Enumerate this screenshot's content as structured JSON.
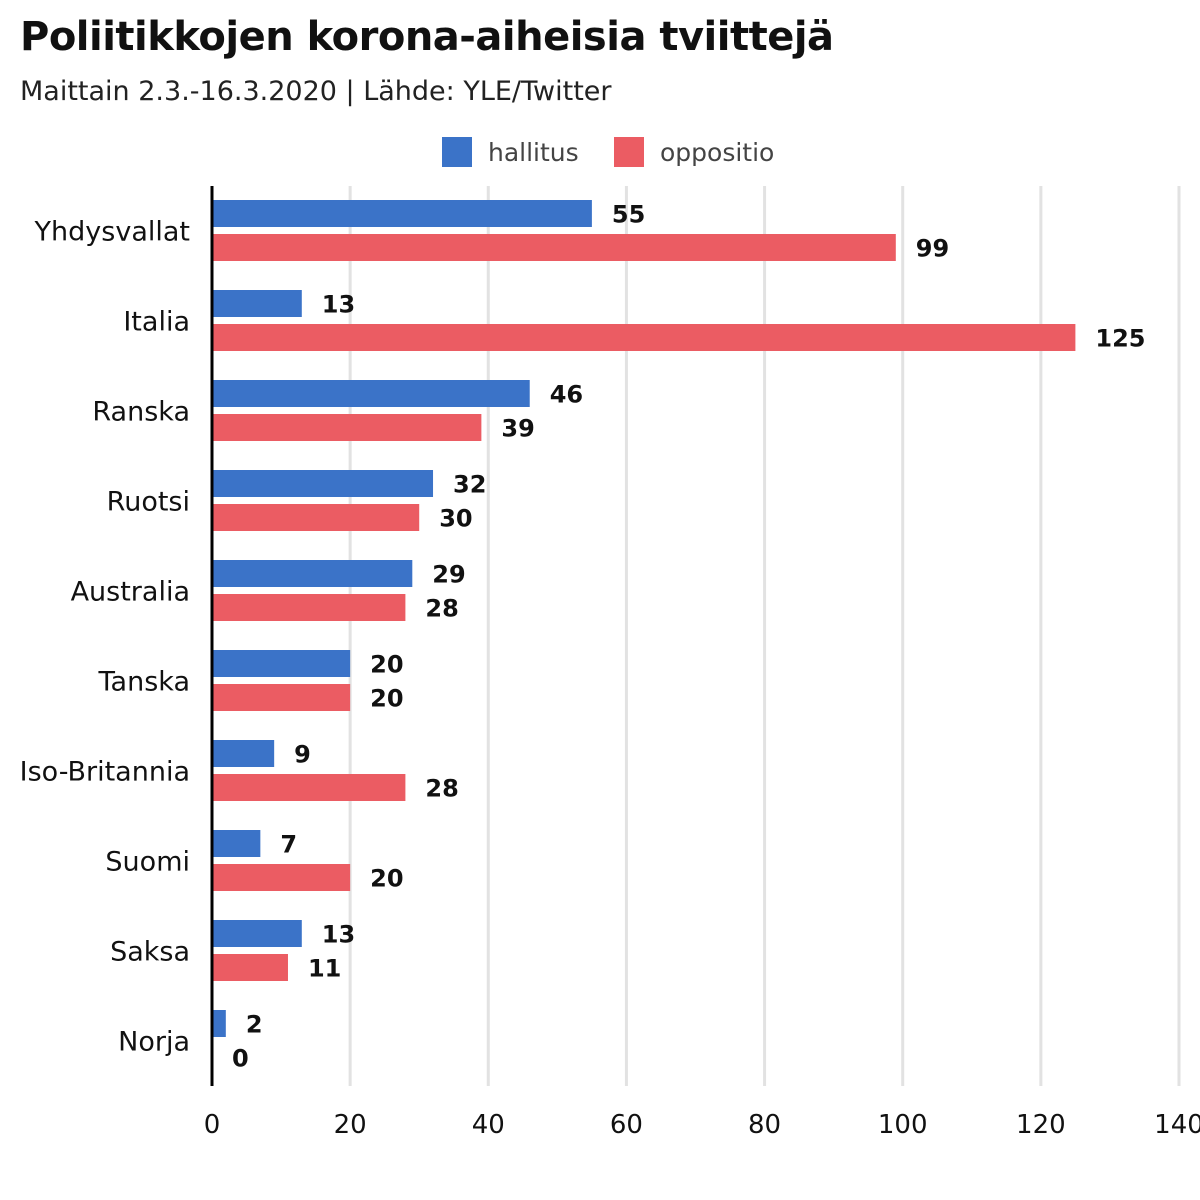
{
  "chart_data": {
    "type": "bar",
    "orientation": "horizontal",
    "title": "Poliitikkojen korona-aiheisia tviittejä",
    "subtitle": "Maittain 2.3.-16.3.2020 | Lähde: YLE/Twitter",
    "categories": [
      "Yhdysvallat",
      "Italia",
      "Ranska",
      "Ruotsi",
      "Australia",
      "Tanska",
      "Iso-Britannia",
      "Suomi",
      "Saksa",
      "Norja"
    ],
    "series": [
      {
        "name": "hallitus",
        "color": "#3b73c8",
        "values": [
          55,
          13,
          46,
          32,
          29,
          20,
          9,
          7,
          13,
          2
        ]
      },
      {
        "name": "oppositio",
        "color": "#eb5c63",
        "values": [
          99,
          125,
          39,
          30,
          28,
          20,
          28,
          20,
          11,
          0
        ]
      }
    ],
    "xlim": [
      0,
      140
    ],
    "x_ticks": [
      0,
      20,
      40,
      60,
      80,
      100,
      120,
      140
    ],
    "xlabel": "",
    "ylabel": "",
    "grid": "vertical",
    "legend_position": "top-center",
    "data_labels": true
  }
}
